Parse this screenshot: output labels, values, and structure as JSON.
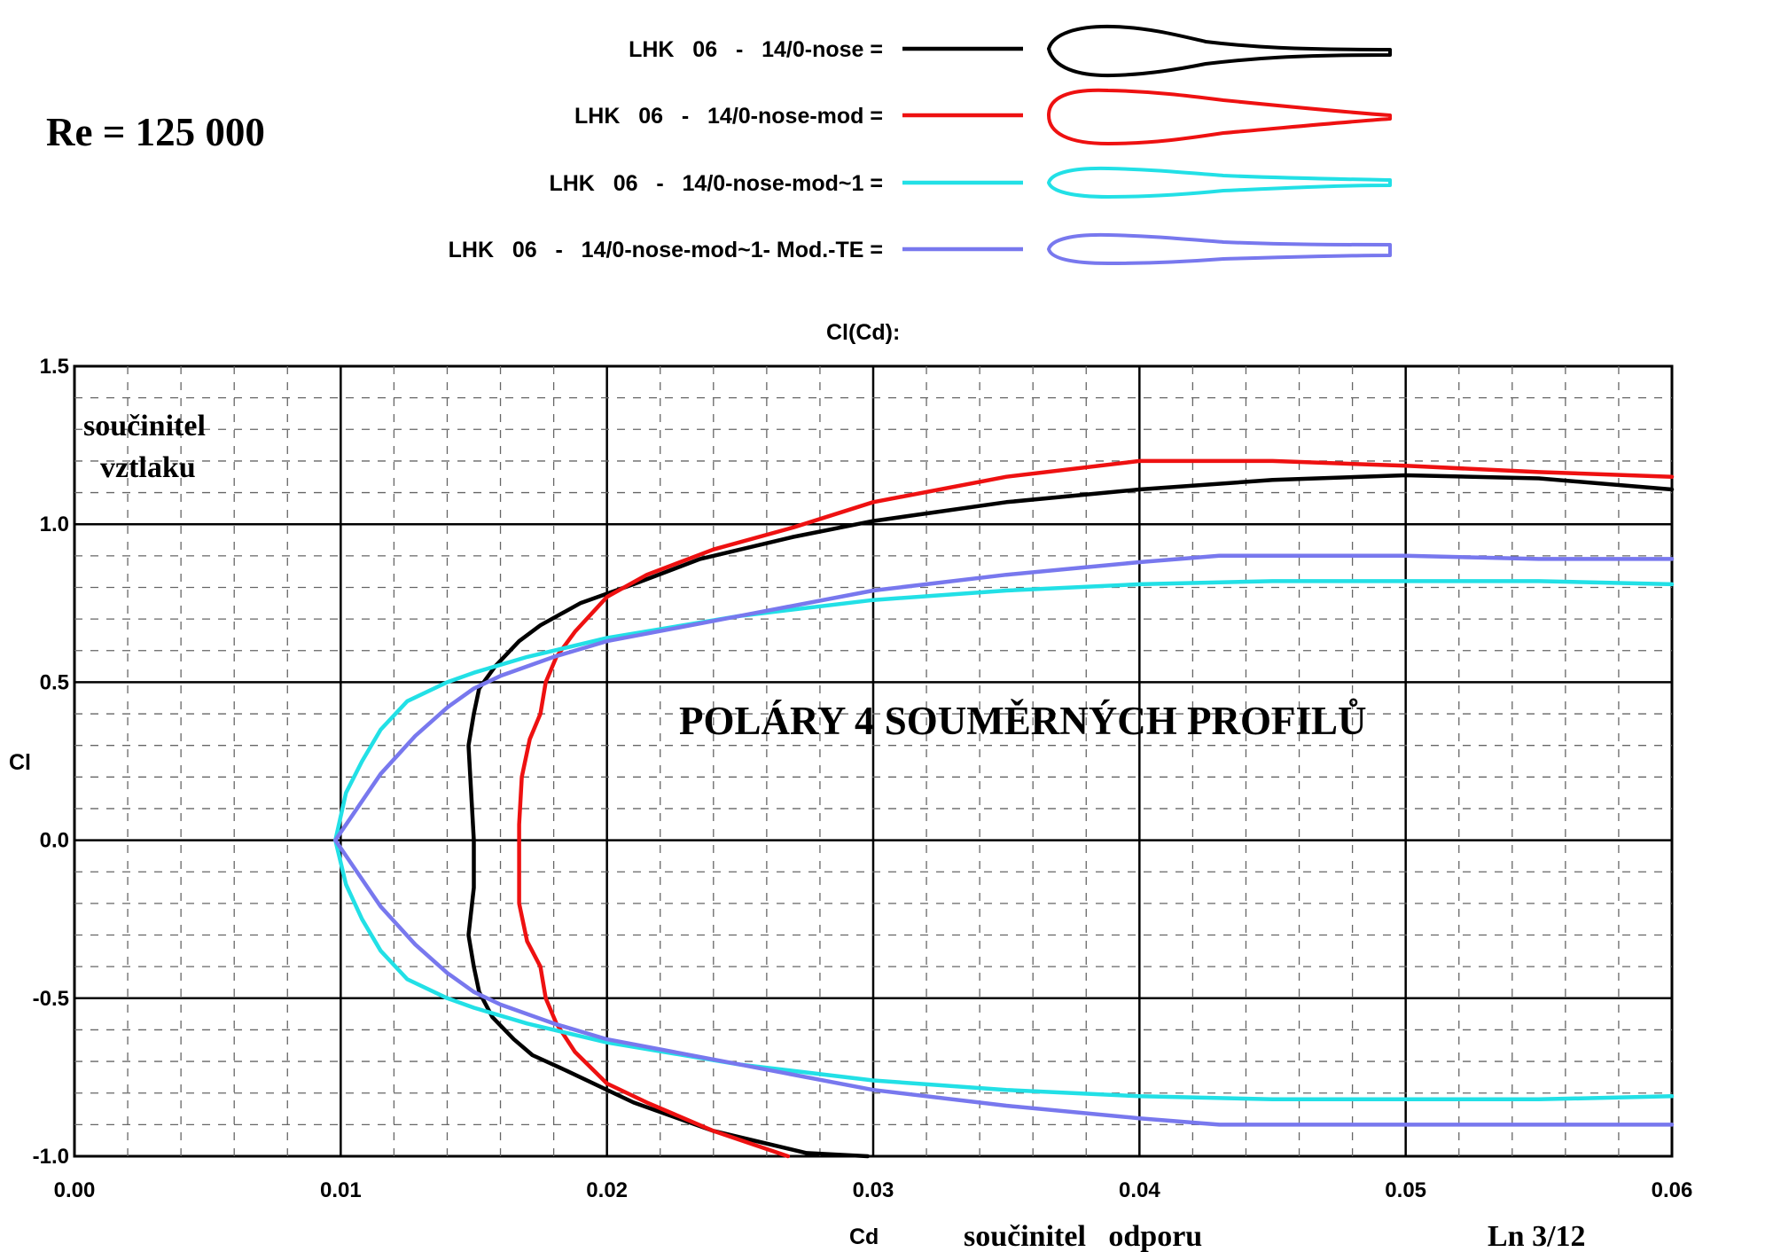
{
  "reynolds_label": "Re = 125 000",
  "y_caption_lines": [
    "součinitel",
    "vztlaku"
  ],
  "x_caption": "součinitel   odporu",
  "overlay_title": "POLÁRY  4  SOUMĚRNÝCH  PROFILŮ",
  "page_ref": "Ln 3/12",
  "legend": [
    {
      "label": "LHK   06   -   14/0-nose =",
      "color": "#000000",
      "profile": "standard"
    },
    {
      "label": "LHK   06   -   14/0-nose-mod =",
      "color": "#ee1111",
      "profile": "blunt"
    },
    {
      "label": "LHK   06   -   14/0-nose-mod~1 =",
      "color": "#22e0e6",
      "profile": "thin"
    },
    {
      "label": "LHK   06   -   14/0-nose-mod~1- Mod.-TE =",
      "color": "#7878ee",
      "profile": "thin-te"
    }
  ],
  "chart_data": {
    "type": "line",
    "title": "Cl(Cd):",
    "xlabel": "Cd",
    "ylabel": "Cl",
    "xlim": [
      0,
      0.06
    ],
    "ylim": [
      -1.0,
      1.5
    ],
    "x_ticks": [
      "0.00",
      "0.01",
      "0.02",
      "0.03",
      "0.04",
      "0.05",
      "0.06"
    ],
    "y_ticks": [
      "1.5",
      "1.0",
      "0.5",
      "0.0",
      "-0.5",
      "-1.0"
    ],
    "grid": true,
    "series": [
      {
        "name": "LHK   06   -   14/0-nose",
        "color": "#000000",
        "points": [
          [
            0.0298,
            -1.0
          ],
          [
            0.0275,
            -0.99
          ],
          [
            0.024,
            -0.92
          ],
          [
            0.021,
            -0.83
          ],
          [
            0.0185,
            -0.73
          ],
          [
            0.0172,
            -0.68
          ],
          [
            0.0165,
            -0.63
          ],
          [
            0.0157,
            -0.56
          ],
          [
            0.0152,
            -0.48
          ],
          [
            0.015,
            -0.4
          ],
          [
            0.0148,
            -0.3
          ],
          [
            0.015,
            -0.15
          ],
          [
            0.015,
            0.0
          ],
          [
            0.0149,
            0.15
          ],
          [
            0.0148,
            0.3
          ],
          [
            0.015,
            0.4
          ],
          [
            0.0152,
            0.48
          ],
          [
            0.0158,
            0.55
          ],
          [
            0.0167,
            0.63
          ],
          [
            0.0175,
            0.68
          ],
          [
            0.019,
            0.75
          ],
          [
            0.021,
            0.81
          ],
          [
            0.0235,
            0.89
          ],
          [
            0.027,
            0.96
          ],
          [
            0.03,
            1.01
          ],
          [
            0.035,
            1.07
          ],
          [
            0.04,
            1.11
          ],
          [
            0.045,
            1.14
          ],
          [
            0.05,
            1.155
          ],
          [
            0.055,
            1.145
          ],
          [
            0.06,
            1.11
          ]
        ]
      },
      {
        "name": "LHK   06   -   14/0-nose-mod",
        "color": "#ee1111",
        "points": [
          [
            0.0268,
            -1.0
          ],
          [
            0.024,
            -0.92
          ],
          [
            0.0215,
            -0.83
          ],
          [
            0.02,
            -0.77
          ],
          [
            0.0188,
            -0.67
          ],
          [
            0.0181,
            -0.58
          ],
          [
            0.0177,
            -0.5
          ],
          [
            0.0175,
            -0.4
          ],
          [
            0.017,
            -0.32
          ],
          [
            0.0167,
            -0.2
          ],
          [
            0.0167,
            -0.05
          ],
          [
            0.0167,
            0.05
          ],
          [
            0.0168,
            0.2
          ],
          [
            0.0171,
            0.32
          ],
          [
            0.0175,
            0.4
          ],
          [
            0.0177,
            0.5
          ],
          [
            0.0181,
            0.58
          ],
          [
            0.0188,
            0.66
          ],
          [
            0.02,
            0.77
          ],
          [
            0.0215,
            0.84
          ],
          [
            0.024,
            0.92
          ],
          [
            0.027,
            0.99
          ],
          [
            0.03,
            1.07
          ],
          [
            0.035,
            1.15
          ],
          [
            0.04,
            1.2
          ],
          [
            0.045,
            1.2
          ],
          [
            0.05,
            1.185
          ],
          [
            0.055,
            1.165
          ],
          [
            0.06,
            1.15
          ]
        ]
      },
      {
        "name": "LHK   06   -   14/0-nose-mod~1",
        "color": "#22e0e6",
        "points": [
          [
            0.06,
            -0.81
          ],
          [
            0.055,
            -0.82
          ],
          [
            0.05,
            -0.82
          ],
          [
            0.045,
            -0.82
          ],
          [
            0.04,
            -0.81
          ],
          [
            0.035,
            -0.79
          ],
          [
            0.03,
            -0.76
          ],
          [
            0.025,
            -0.71
          ],
          [
            0.02,
            -0.64
          ],
          [
            0.017,
            -0.58
          ],
          [
            0.015,
            -0.53
          ],
          [
            0.014,
            -0.5
          ],
          [
            0.0125,
            -0.44
          ],
          [
            0.0115,
            -0.35
          ],
          [
            0.0108,
            -0.25
          ],
          [
            0.0102,
            -0.14
          ],
          [
            0.0098,
            0.0
          ],
          [
            0.0102,
            0.15
          ],
          [
            0.0108,
            0.25
          ],
          [
            0.0115,
            0.35
          ],
          [
            0.0125,
            0.44
          ],
          [
            0.014,
            0.5
          ],
          [
            0.015,
            0.53
          ],
          [
            0.017,
            0.58
          ],
          [
            0.02,
            0.64
          ],
          [
            0.025,
            0.71
          ],
          [
            0.03,
            0.76
          ],
          [
            0.035,
            0.79
          ],
          [
            0.04,
            0.81
          ],
          [
            0.045,
            0.82
          ],
          [
            0.05,
            0.82
          ],
          [
            0.055,
            0.82
          ],
          [
            0.06,
            0.81
          ]
        ]
      },
      {
        "name": "LHK   06   -   14/0-nose-mod~1- Mod.-TE",
        "color": "#7878ee",
        "points": [
          [
            0.06,
            -0.9
          ],
          [
            0.055,
            -0.9
          ],
          [
            0.05,
            -0.9
          ],
          [
            0.043,
            -0.9
          ],
          [
            0.04,
            -0.88
          ],
          [
            0.035,
            -0.84
          ],
          [
            0.03,
            -0.79
          ],
          [
            0.025,
            -0.71
          ],
          [
            0.02,
            -0.63
          ],
          [
            0.018,
            -0.58
          ],
          [
            0.016,
            -0.52
          ],
          [
            0.015,
            -0.48
          ],
          [
            0.014,
            -0.42
          ],
          [
            0.0128,
            -0.33
          ],
          [
            0.0115,
            -0.21
          ],
          [
            0.0098,
            0.0
          ],
          [
            0.0115,
            0.21
          ],
          [
            0.0128,
            0.33
          ],
          [
            0.014,
            0.42
          ],
          [
            0.015,
            0.48
          ],
          [
            0.016,
            0.52
          ],
          [
            0.018,
            0.58
          ],
          [
            0.02,
            0.63
          ],
          [
            0.025,
            0.71
          ],
          [
            0.03,
            0.79
          ],
          [
            0.035,
            0.84
          ],
          [
            0.04,
            0.88
          ],
          [
            0.043,
            0.9
          ],
          [
            0.05,
            0.9
          ],
          [
            0.055,
            0.89
          ],
          [
            0.06,
            0.89
          ]
        ]
      }
    ]
  }
}
